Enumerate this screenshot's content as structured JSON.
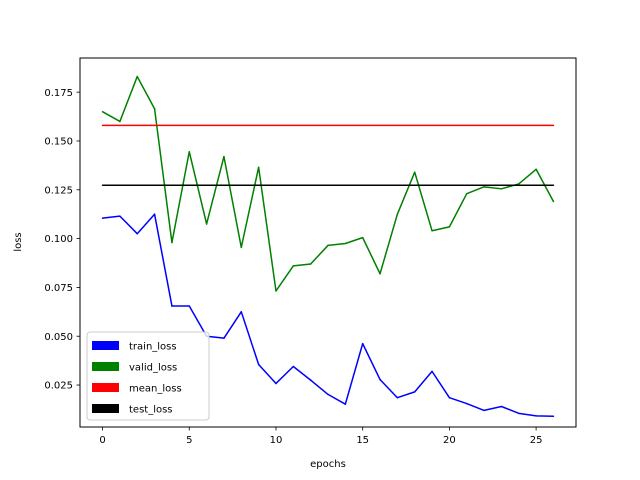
{
  "chart_data": {
    "type": "line",
    "title": "",
    "xlabel": "epochs",
    "ylabel": "loss",
    "xlim": [
      -1.3,
      27.3
    ],
    "ylim": [
      0.0035,
      0.1925
    ],
    "xticks": [
      0,
      5,
      10,
      15,
      20,
      25
    ],
    "xtick_labels": [
      "0",
      "5",
      "10",
      "15",
      "20",
      "25"
    ],
    "yticks": [
      0.025,
      0.05,
      0.075,
      0.1,
      0.125,
      0.15,
      0.175
    ],
    "ytick_labels": [
      "0.025",
      "0.050",
      "0.075",
      "0.100",
      "0.125",
      "0.150",
      "0.175"
    ],
    "grid": false,
    "legend_position": "lower-left",
    "series": [
      {
        "name": "train_loss",
        "color": "#0000ff",
        "x": [
          0,
          1,
          2,
          3,
          4,
          5,
          6,
          7,
          8,
          9,
          10,
          11,
          12,
          13,
          14,
          15,
          16,
          17,
          18,
          19,
          20,
          21,
          22,
          23,
          24,
          25,
          26
        ],
        "values": [
          0.1105,
          0.1115,
          0.1025,
          0.1125,
          0.0655,
          0.0655,
          0.05,
          0.049,
          0.0625,
          0.0355,
          0.0258,
          0.0345,
          0.0275,
          0.0202,
          0.0152,
          0.0462,
          0.0278,
          0.0185,
          0.0215,
          0.032,
          0.0185,
          0.0155,
          0.012,
          0.014,
          0.0105,
          0.0092,
          0.009
        ]
      },
      {
        "name": "valid_loss",
        "color": "#008000",
        "x": [
          0,
          1,
          2,
          3,
          4,
          5,
          6,
          7,
          8,
          9,
          10,
          11,
          12,
          13,
          14,
          15,
          16,
          17,
          18,
          19,
          20,
          21,
          22,
          23,
          24,
          25,
          26
        ],
        "values": [
          0.165,
          0.16,
          0.183,
          0.1665,
          0.098,
          0.1445,
          0.1075,
          0.142,
          0.0955,
          0.1365,
          0.0732,
          0.086,
          0.087,
          0.0965,
          0.0975,
          0.1005,
          0.082,
          0.1125,
          0.134,
          0.104,
          0.106,
          0.123,
          0.1265,
          0.1255,
          0.128,
          0.1355,
          0.119
        ]
      },
      {
        "name": "mean_loss",
        "color": "#ff0000",
        "x": [
          0,
          26
        ],
        "values": [
          0.158,
          0.158
        ]
      },
      {
        "name": "test_loss",
        "color": "#000000",
        "x": [
          0,
          26
        ],
        "values": [
          0.1273,
          0.1273
        ]
      }
    ]
  }
}
